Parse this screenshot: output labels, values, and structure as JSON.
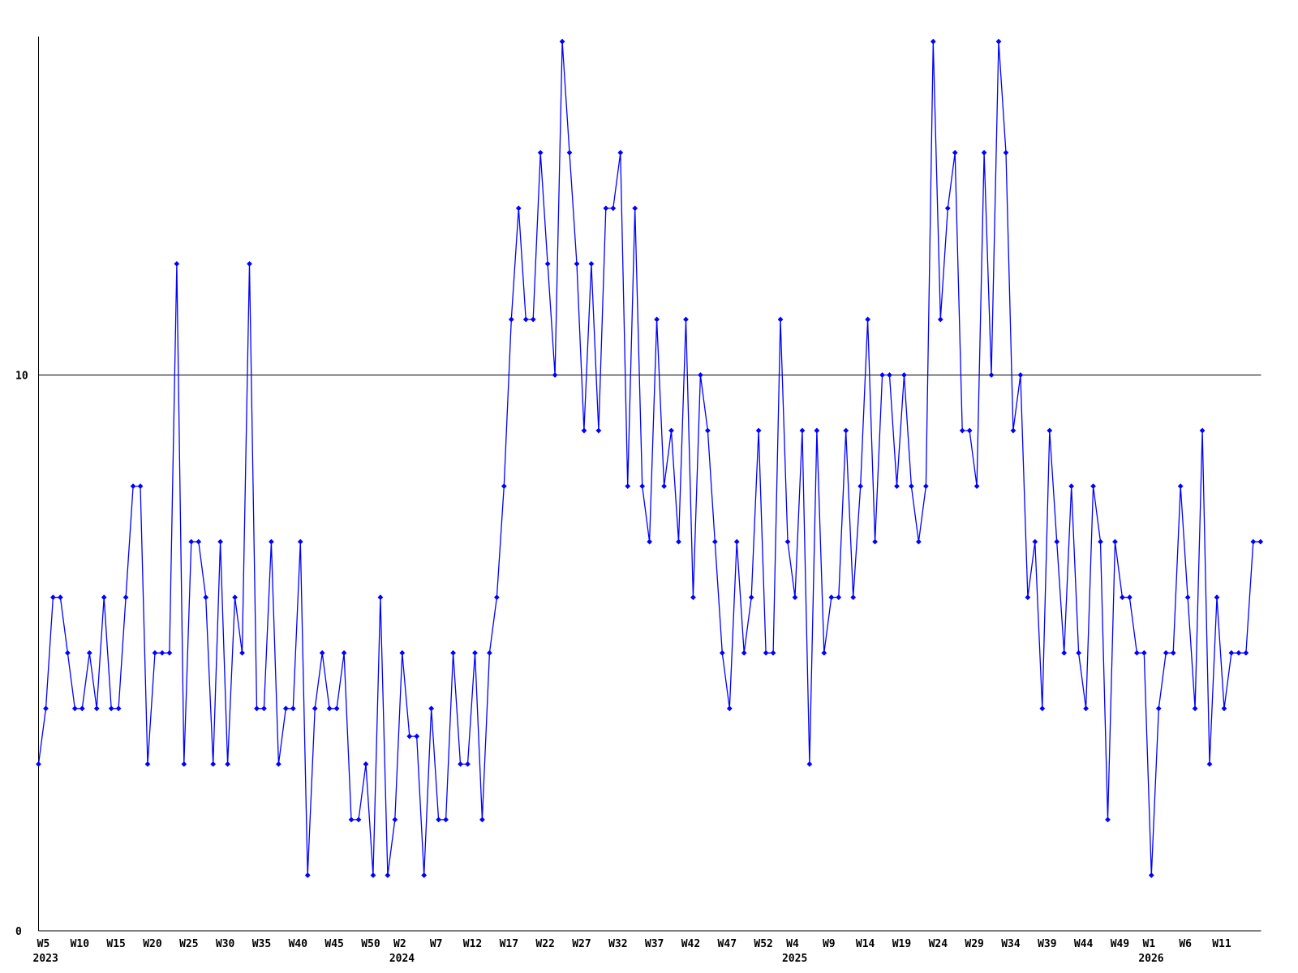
{
  "chart_data": {
    "type": "line",
    "title": "",
    "xlabel": "",
    "ylabel": "",
    "grid": "off",
    "legend": "none",
    "line_color": "#0000ff",
    "axis_color": "#000000",
    "background_color": "#ffffff",
    "marker": "diamond",
    "threshold_line": {
      "value": 10,
      "color": "#000000"
    },
    "y_axis": {
      "min": 0,
      "max": 16.5,
      "tick_labels": [
        {
          "value": 0,
          "text": "0"
        },
        {
          "value": 10,
          "text": "10"
        }
      ]
    },
    "x_axis": {
      "unit": "ISO week",
      "start": "2023-W05",
      "step_weeks": 1,
      "ticks": [
        {
          "i": 0,
          "label": "W5",
          "year": "2023"
        },
        {
          "i": 5,
          "label": "W10"
        },
        {
          "i": 10,
          "label": "W15"
        },
        {
          "i": 15,
          "label": "W20"
        },
        {
          "i": 20,
          "label": "W25"
        },
        {
          "i": 25,
          "label": "W30"
        },
        {
          "i": 30,
          "label": "W35"
        },
        {
          "i": 35,
          "label": "W40"
        },
        {
          "i": 40,
          "label": "W45"
        },
        {
          "i": 45,
          "label": "W50"
        },
        {
          "i": 49,
          "label": "W2",
          "year": "2024"
        },
        {
          "i": 54,
          "label": "W7"
        },
        {
          "i": 59,
          "label": "W12"
        },
        {
          "i": 64,
          "label": "W17"
        },
        {
          "i": 69,
          "label": "W22"
        },
        {
          "i": 74,
          "label": "W27"
        },
        {
          "i": 79,
          "label": "W32"
        },
        {
          "i": 84,
          "label": "W37"
        },
        {
          "i": 89,
          "label": "W42"
        },
        {
          "i": 94,
          "label": "W47"
        },
        {
          "i": 99,
          "label": "W52"
        },
        {
          "i": 103,
          "label": "W4",
          "year": "2025"
        },
        {
          "i": 108,
          "label": "W9"
        },
        {
          "i": 113,
          "label": "W14"
        },
        {
          "i": 118,
          "label": "W19"
        },
        {
          "i": 123,
          "label": "W24"
        },
        {
          "i": 128,
          "label": "W29"
        },
        {
          "i": 133,
          "label": "W34"
        },
        {
          "i": 138,
          "label": "W39"
        },
        {
          "i": 143,
          "label": "W44"
        },
        {
          "i": 148,
          "label": "W49"
        },
        {
          "i": 152,
          "label": "W1",
          "year": "2026"
        },
        {
          "i": 157,
          "label": "W6"
        },
        {
          "i": 162,
          "label": "W11"
        }
      ]
    },
    "values": [
      3,
      4,
      6,
      6,
      5,
      4,
      4,
      5,
      4,
      6,
      4,
      4,
      6,
      8,
      8,
      3,
      5,
      5,
      5,
      12,
      3,
      7,
      7,
      6,
      3,
      7,
      3,
      6,
      5,
      12,
      4,
      4,
      7,
      3,
      4,
      4,
      7,
      1,
      4,
      5,
      4,
      4,
      5,
      2,
      2,
      3,
      1,
      6,
      1,
      2,
      5,
      3.5,
      3.5,
      1,
      4,
      2,
      2,
      5,
      3,
      3,
      5,
      2,
      5,
      6,
      8,
      11,
      13,
      11,
      11,
      14,
      12,
      10,
      16,
      14,
      12,
      9,
      12,
      9,
      13,
      13,
      14,
      8,
      13,
      8,
      7,
      11,
      8,
      9,
      7,
      11,
      6,
      10,
      9,
      7,
      5,
      4,
      7,
      5,
      6,
      9,
      5,
      5,
      11,
      7,
      6,
      9,
      3,
      9,
      5,
      6,
      6,
      9,
      6,
      8,
      11,
      7,
      10,
      10,
      8,
      10,
      8,
      7,
      8,
      16,
      11,
      13,
      14,
      9,
      9,
      8,
      14,
      10,
      16,
      14,
      9,
      10,
      6,
      7,
      4,
      9,
      7,
      5,
      8,
      5,
      4,
      8,
      7,
      2,
      7,
      6,
      6,
      5,
      5,
      1,
      4,
      5,
      5,
      8,
      6,
      4,
      9,
      3,
      6,
      4,
      5,
      5,
      5,
      7,
      7
    ]
  }
}
